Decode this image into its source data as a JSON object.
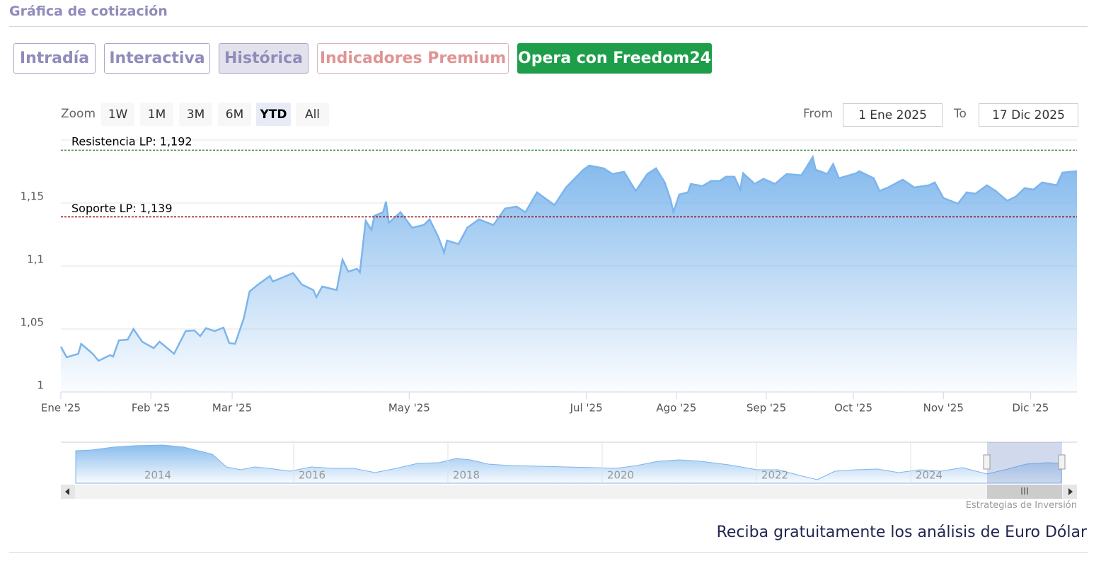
{
  "header": {
    "title": "Gráfica de cotización"
  },
  "tabs": [
    "Intradía",
    "Interactiva",
    "Histórica",
    "Indicadores Premium",
    "Opera con Freedom24"
  ],
  "zoom": {
    "label": "Zoom",
    "buttons": [
      "1W",
      "1M",
      "3M",
      "6M",
      "YTD",
      "All"
    ],
    "from_label": "From",
    "from": "1 Ene 2025",
    "to_label": "To",
    "to": "17 Dic 2025"
  },
  "chart_data": {
    "type": "area",
    "x": [
      1,
      3,
      7,
      8,
      12,
      14,
      18,
      19,
      21,
      24,
      26,
      29,
      33,
      35,
      40,
      44,
      47,
      49,
      51,
      54,
      57,
      59,
      61,
      64,
      66,
      69,
      73,
      74,
      81,
      84,
      88,
      89,
      91,
      96,
      98,
      100,
      103,
      104,
      106,
      108,
      109,
      112,
      113,
      114,
      118,
      122,
      126,
      128,
      131,
      133,
      134,
      138,
      141,
      145,
      150,
      154,
      158,
      161,
      165,
      171,
      175,
      181,
      183,
      188,
      191,
      195,
      199,
      203,
      206,
      209,
      211,
      212,
      214,
      217,
      218,
      222,
      225,
      228,
      230,
      233,
      235,
      236,
      240,
      243,
      247,
      251,
      256,
      257,
      260,
      261,
      265,
      267,
      269,
      275,
      276,
      281,
      283,
      286,
      291,
      295,
      300,
      302,
      305,
      310,
      313,
      316,
      320,
      323,
      327,
      330,
      333,
      336,
      339,
      344,
      346,
      351
    ],
    "values": [
      1.036,
      1.0275,
      1.0303,
      1.0382,
      1.0303,
      1.0247,
      1.0292,
      1.0281,
      1.041,
      1.0416,
      1.05,
      1.0399,
      1.0348,
      1.0399,
      1.0303,
      1.0483,
      1.0489,
      1.0444,
      1.0506,
      1.0483,
      1.0511,
      1.0388,
      1.0382,
      1.0584,
      1.0798,
      1.0854,
      1.0921,
      1.0877,
      1.0944,
      1.0854,
      1.0809,
      1.0753,
      1.0837,
      1.0809,
      1.1051,
      1.0955,
      1.0978,
      1.095,
      1.136,
      1.1287,
      1.1399,
      1.1427,
      1.1512,
      1.1343,
      1.1427,
      1.1304,
      1.1326,
      1.1371,
      1.1231,
      1.1107,
      1.1203,
      1.1175,
      1.1304,
      1.1371,
      1.1326,
      1.1456,
      1.1472,
      1.1427,
      1.1585,
      1.1484,
      1.1624,
      1.1765,
      1.1798,
      1.1776,
      1.1731,
      1.1748,
      1.1596,
      1.1731,
      1.1776,
      1.1664,
      1.1529,
      1.1427,
      1.1568,
      1.1585,
      1.1652,
      1.1635,
      1.1675,
      1.1675,
      1.1709,
      1.1709,
      1.1607,
      1.1737,
      1.1652,
      1.1692,
      1.1652,
      1.1731,
      1.172,
      1.1753,
      1.1866,
      1.1765,
      1.1731,
      1.181,
      1.1697,
      1.1737,
      1.1753,
      1.1697,
      1.1596,
      1.1624,
      1.1686,
      1.1624,
      1.1641,
      1.1664,
      1.154,
      1.1495,
      1.1585,
      1.1574,
      1.1641,
      1.1596,
      1.1518,
      1.1552,
      1.1619,
      1.1607,
      1.1664,
      1.1641,
      1.1742,
      1.1753
    ],
    "color": "#7cb5ec",
    "xlim": [
      1,
      351
    ],
    "xticks": [
      {
        "value": 1,
        "label": "Ene '25"
      },
      {
        "value": 32,
        "label": "Feb '25"
      },
      {
        "value": 60,
        "label": "Mar '25"
      },
      {
        "value": 121,
        "label": "May '25"
      },
      {
        "value": 182,
        "label": "Jul '25"
      },
      {
        "value": 213,
        "label": "Ago '25"
      },
      {
        "value": 244,
        "label": "Sep '25"
      },
      {
        "value": 274,
        "label": "Oct '25"
      },
      {
        "value": 305,
        "label": "Nov '25"
      },
      {
        "value": 335,
        "label": "Dic '25"
      }
    ],
    "ylim": [
      1,
      1.2
    ],
    "yticks": [
      1,
      {
        "value": 1.05,
        "label": "1,05"
      },
      {
        "value": 1.1,
        "label": "1,1"
      },
      {
        "value": 1.15,
        "label": "1,15"
      }
    ],
    "grid": true,
    "annotations": [
      {
        "label": "Resistencia LP: 1,192",
        "value": 1.192,
        "color": "#2e7d32"
      },
      {
        "label": "Soporte LP: 1,139",
        "value": 1.139,
        "color": "#8b0000"
      }
    ]
  },
  "navigator": {
    "labels": [
      "2014",
      "2016",
      "2018",
      "2020",
      "2022",
      "2024"
    ]
  },
  "credit": "Estrategias de Inversión",
  "footer": "Reciba gratuitamente los análisis de Euro Dólar"
}
